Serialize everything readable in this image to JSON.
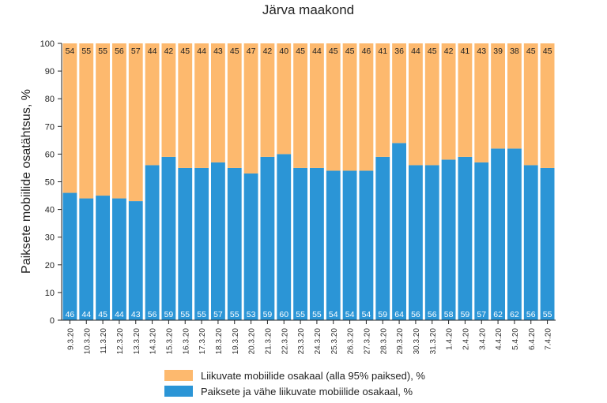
{
  "chart_data": {
    "type": "bar",
    "stacked": true,
    "title": "Järva maakond",
    "xlabel": "",
    "ylabel": "Paiksete mobiilide osatähtsus, %",
    "ylim": [
      0,
      100
    ],
    "yticks": [
      "0",
      "10",
      "20",
      "30",
      "40",
      "50",
      "60",
      "70",
      "80",
      "90",
      "100"
    ],
    "grid": false,
    "legend_position": "bottom",
    "categories": [
      "9.3.20",
      "10.3.20",
      "11.3.20",
      "12.3.20",
      "13.3.20",
      "14.3.20",
      "15.3.20",
      "16.3.20",
      "17.3.20",
      "18.3.20",
      "19.3.20",
      "20.3.20",
      "21.3.20",
      "22.3.20",
      "23.3.20",
      "24.3.20",
      "25.3.20",
      "26.3.20",
      "27.3.20",
      "28.3.20",
      "29.3.20",
      "30.3.20",
      "31.3.20",
      "1.4.20",
      "2.4.20",
      "3.4.20",
      "4.4.20",
      "5.4.20",
      "6.4.20",
      "7.4.20"
    ],
    "series": [
      {
        "name": "Paiksete ja vähe liikuvate mobiilide osakaal, %",
        "color": "#2b95d6",
        "label_color": "#ffffff",
        "values": [
          46,
          44,
          45,
          44,
          43,
          56,
          59,
          55,
          55,
          57,
          55,
          53,
          59,
          60,
          55,
          55,
          54,
          54,
          54,
          59,
          64,
          56,
          56,
          58,
          59,
          57,
          62,
          62,
          56,
          55
        ]
      },
      {
        "name": "Liikuvate mobiilide osakaal (alla 95% paiksed), %",
        "color": "#fdb96e",
        "label_color": "#222222",
        "values": [
          54,
          55,
          55,
          56,
          57,
          44,
          42,
          45,
          44,
          43,
          45,
          47,
          42,
          40,
          45,
          44,
          45,
          45,
          46,
          41,
          36,
          44,
          45,
          42,
          41,
          43,
          39,
          38,
          45,
          45
        ]
      }
    ],
    "legend": [
      {
        "label": "Liikuvate mobiilide osakaal (alla 95% paiksed), %",
        "color": "#fdb96e"
      },
      {
        "label": "Paiksete ja vähe liikuvate mobiilide osakaal, %",
        "color": "#2b95d6"
      }
    ]
  }
}
